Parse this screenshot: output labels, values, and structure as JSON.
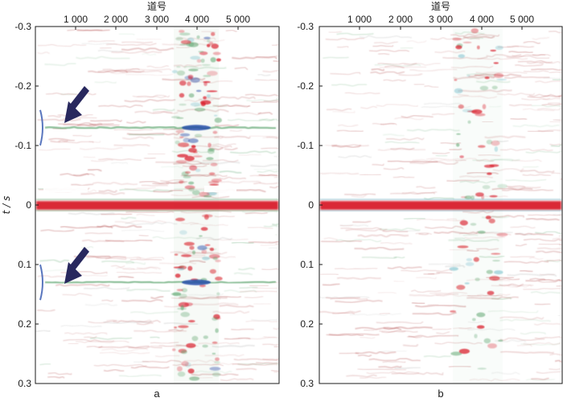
{
  "panels": [
    {
      "id": "a",
      "caption": "a",
      "x_axis_title": "道号",
      "x_ticks": [
        "1 000",
        "2 000",
        "3 000",
        "4 000",
        "5 000"
      ],
      "y_axis_title": "t / s",
      "y_ticks": [
        "-0.3",
        "-0.2",
        "-0.1",
        "0",
        "0.1",
        "0.2",
        "0.3"
      ],
      "arrows": 2
    },
    {
      "id": "b",
      "caption": "b",
      "x_axis_title": "道号",
      "x_ticks": [
        "1 000",
        "2 000",
        "3 000",
        "4 000",
        "5 000"
      ],
      "y_ticks": [
        "-0.3",
        "-0.2",
        "-0.1",
        "0",
        "0.1",
        "0.2",
        "0.3"
      ],
      "arrows": 0
    }
  ],
  "colors": {
    "strong_positive": "#d81d2a",
    "weak_positive": "#b85a5a",
    "negative": "#2148a8",
    "cyan": "#5fb3c3",
    "green": "#5aa36b",
    "arrow": "#28285e",
    "frame": "#1a1a1a"
  }
}
